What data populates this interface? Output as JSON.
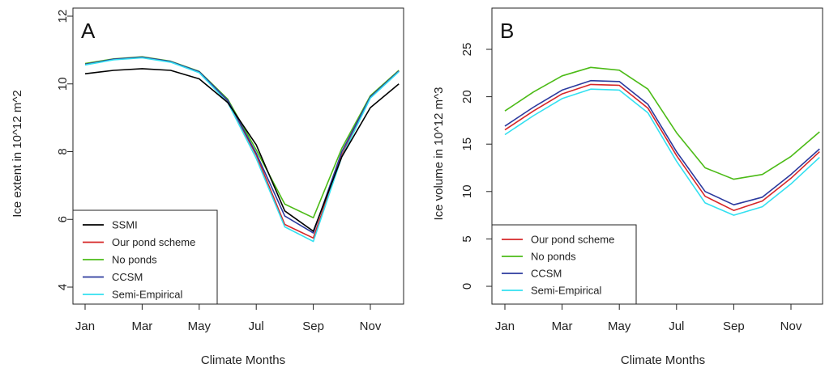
{
  "chart_data": [
    {
      "type": "line",
      "panel_label": "A",
      "xlabel": "Climate Months",
      "ylabel": "Ice extent in 10^12 m^2",
      "ylim": [
        4,
        12
      ],
      "yticks": [
        4,
        6,
        8,
        10,
        12
      ],
      "xticks": [
        "Jan",
        "Mar",
        "May",
        "Jul",
        "Sep",
        "Nov"
      ],
      "x": [
        "Jan",
        "Feb",
        "Mar",
        "Apr",
        "May",
        "Jun",
        "Jul",
        "Aug",
        "Sep",
        "Oct",
        "Nov",
        "Dec"
      ],
      "legend_position": "bottom-left",
      "series": [
        {
          "name": "SSMI",
          "color": "#000000",
          "values": [
            10.3,
            10.4,
            10.45,
            10.4,
            10.15,
            9.45,
            8.2,
            6.25,
            5.65,
            7.85,
            9.3,
            10.0
          ]
        },
        {
          "name": "Our pond scheme",
          "color": "#d62728",
          "values": [
            10.58,
            10.72,
            10.78,
            10.65,
            10.35,
            9.5,
            7.9,
            5.85,
            5.45,
            7.9,
            9.6,
            10.38
          ]
        },
        {
          "name": "No ponds",
          "color": "#4cbb17",
          "values": [
            10.6,
            10.74,
            10.8,
            10.67,
            10.37,
            9.55,
            8.05,
            6.45,
            6.05,
            8.1,
            9.65,
            10.4
          ]
        },
        {
          "name": "CCSM",
          "color": "#2b3a9e",
          "values": [
            10.58,
            10.73,
            10.79,
            10.66,
            10.36,
            9.52,
            7.95,
            6.1,
            5.6,
            8.0,
            9.62,
            10.38
          ]
        },
        {
          "name": "Semi-Empirical",
          "color": "#33e0f0",
          "values": [
            10.56,
            10.71,
            10.77,
            10.64,
            10.33,
            9.45,
            7.8,
            5.78,
            5.35,
            7.85,
            9.58,
            10.36
          ]
        }
      ]
    },
    {
      "type": "line",
      "panel_label": "B",
      "xlabel": "Climate Months",
      "ylabel": "Ice volume in 10^12 m^3",
      "ylim": [
        -1.2,
        29.5
      ],
      "yticks": [
        0,
        5,
        10,
        15,
        20,
        25
      ],
      "xticks": [
        "Jan",
        "Mar",
        "May",
        "Jul",
        "Sep",
        "Nov"
      ],
      "x": [
        "Jan",
        "Feb",
        "Mar",
        "Apr",
        "May",
        "Jun",
        "Jul",
        "Aug",
        "Sep",
        "Oct",
        "Nov",
        "Dec"
      ],
      "legend_position": "bottom-left",
      "series": [
        {
          "name": "Our pond scheme",
          "color": "#d62728",
          "values": [
            16.5,
            18.5,
            20.3,
            21.3,
            21.2,
            18.8,
            13.8,
            9.5,
            8.0,
            9.0,
            11.4,
            14.2
          ]
        },
        {
          "name": "No ponds",
          "color": "#4cbb17",
          "values": [
            18.5,
            20.5,
            22.2,
            23.1,
            22.8,
            20.8,
            16.2,
            12.5,
            11.3,
            11.8,
            13.7,
            16.3
          ]
        },
        {
          "name": "CCSM",
          "color": "#2b3a9e",
          "values": [
            16.9,
            18.9,
            20.7,
            21.7,
            21.6,
            19.2,
            14.2,
            10.0,
            8.6,
            9.4,
            11.8,
            14.5
          ]
        },
        {
          "name": "Semi-Empirical",
          "color": "#33e0f0",
          "values": [
            16.0,
            18.0,
            19.8,
            20.8,
            20.7,
            18.3,
            13.2,
            8.8,
            7.5,
            8.4,
            10.8,
            13.6
          ]
        }
      ]
    }
  ]
}
